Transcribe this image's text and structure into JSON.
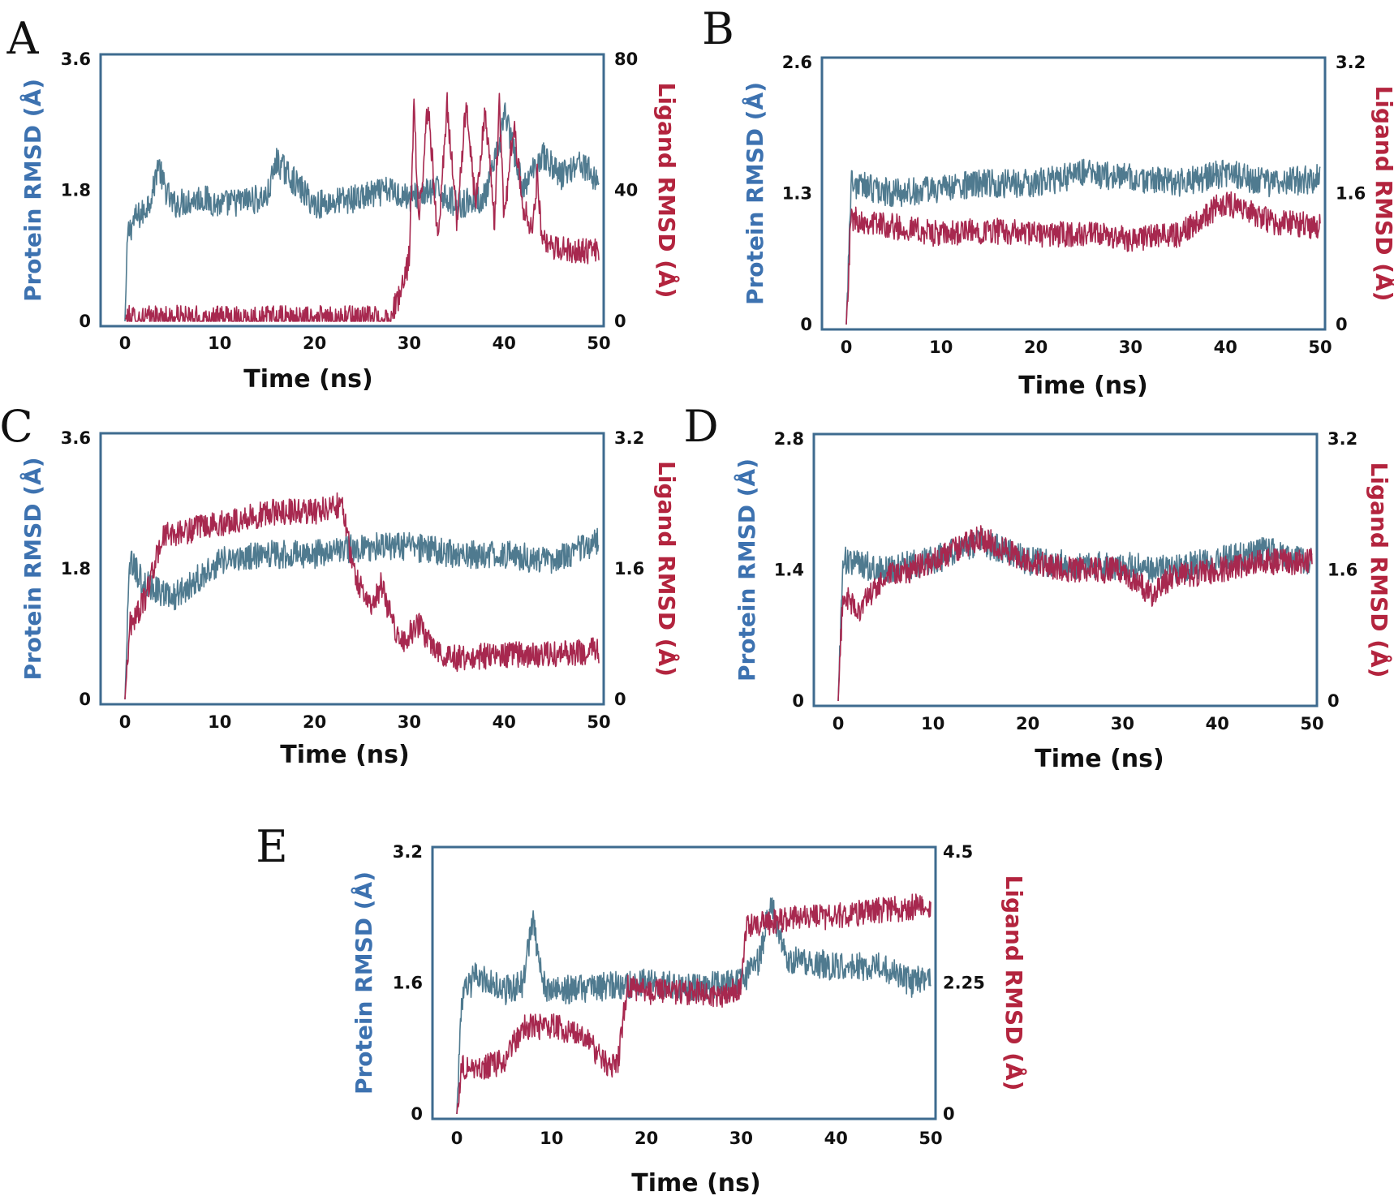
{
  "chart_data": [
    {
      "panel": "A",
      "type": "line",
      "xlabel": "Time (ns)",
      "ylabel": "Protein RMSD (Å)",
      "ylabel_right": "Ligand RMSD (Å)",
      "xlim": [
        0,
        50
      ],
      "x_ticks": [
        "0",
        "10",
        "20",
        "30",
        "40",
        "50"
      ],
      "ylim": [
        0,
        3.6
      ],
      "y_ticks": [
        "0",
        "1.8",
        "3.6"
      ],
      "ylim_right": [
        0,
        80
      ],
      "y_ticks_right": [
        "0",
        "40",
        "80"
      ],
      "grid": false,
      "colors": {
        "protein": "#4f7a8f",
        "ligand": "#a7284f"
      },
      "series": [
        {
          "axis": "left",
          "color": "#4f7a8f",
          "x": [
            0,
            0.3,
            1,
            2,
            3,
            3.5,
            4,
            5,
            8,
            10,
            15,
            16,
            20,
            25,
            28,
            30,
            33,
            35,
            38,
            39.5,
            40,
            42,
            44,
            46,
            48,
            50
          ],
          "y": [
            0,
            1.2,
            1.4,
            1.5,
            1.8,
            2.2,
            1.9,
            1.6,
            1.7,
            1.6,
            1.7,
            2.2,
            1.6,
            1.7,
            1.8,
            1.7,
            1.8,
            1.6,
            1.7,
            2.4,
            2.9,
            1.8,
            2.3,
            2.0,
            2.2,
            1.9
          ]
        },
        {
          "axis": "right",
          "color": "#a7284f",
          "x": [
            0,
            5,
            10,
            20,
            28,
            29.5,
            30,
            30.5,
            31,
            32,
            33,
            34,
            35,
            36,
            37,
            38,
            39,
            39.5,
            40,
            41,
            42,
            43,
            43.5,
            44,
            45,
            47,
            50
          ],
          "y": [
            0.8,
            0.9,
            0.8,
            0.8,
            1,
            12,
            20,
            66,
            30,
            67,
            25,
            66,
            30,
            67,
            35,
            64,
            30,
            67,
            30,
            60,
            35,
            28,
            45,
            25,
            22,
            22,
            21
          ]
        }
      ]
    },
    {
      "panel": "B",
      "type": "line",
      "xlabel": "Time (ns)",
      "ylabel": "Protein RMSD (Å)",
      "ylabel_right": "Ligand RMSD (Å)",
      "xlim": [
        0,
        50
      ],
      "x_ticks": [
        "0",
        "10",
        "20",
        "30",
        "40",
        "50"
      ],
      "ylim": [
        0,
        2.6
      ],
      "y_ticks": [
        "0",
        "1.3",
        "2.6"
      ],
      "ylim_right": [
        0,
        3.2
      ],
      "y_ticks_right": [
        "0",
        "1.6",
        "3.2"
      ],
      "grid": false,
      "colors": {
        "protein": "#4f7a8f",
        "ligand": "#a7284f"
      },
      "series": [
        {
          "axis": "left",
          "color": "#4f7a8f",
          "x": [
            0,
            0.5,
            5,
            10,
            15,
            20,
            25,
            30,
            35,
            40,
            45,
            50
          ],
          "y": [
            0,
            1.4,
            1.3,
            1.35,
            1.4,
            1.4,
            1.5,
            1.45,
            1.4,
            1.5,
            1.4,
            1.45
          ]
        },
        {
          "axis": "right",
          "color": "#a7284f",
          "x": [
            0,
            0.5,
            5,
            10,
            15,
            20,
            25,
            30,
            35,
            40,
            45,
            50
          ],
          "y": [
            0,
            1.3,
            1.2,
            1.1,
            1.15,
            1.1,
            1.1,
            1.05,
            1.1,
            1.5,
            1.25,
            1.2
          ]
        }
      ]
    },
    {
      "panel": "C",
      "type": "line",
      "xlabel": "Time (ns)",
      "ylabel": "Protein RMSD (Å)",
      "ylabel_right": "Ligand RMSD (Å)",
      "xlim": [
        0,
        50
      ],
      "x_ticks": [
        "0",
        "10",
        "20",
        "30",
        "40",
        "50"
      ],
      "ylim": [
        0,
        3.6
      ],
      "y_ticks": [
        "0",
        "1.8",
        "3.6"
      ],
      "ylim_right": [
        0,
        3.2
      ],
      "y_ticks_right": [
        "0",
        "1.6",
        "3.2"
      ],
      "grid": false,
      "colors": {
        "protein": "#4f7a8f",
        "ligand": "#a7284f"
      },
      "series": [
        {
          "axis": "left",
          "color": "#4f7a8f",
          "x": [
            0,
            0.5,
            2,
            5,
            10,
            15,
            20,
            25,
            30,
            35,
            40,
            45,
            50
          ],
          "y": [
            0,
            1.9,
            1.6,
            1.4,
            1.9,
            2.0,
            2.0,
            2.1,
            2.1,
            2.0,
            2.0,
            1.9,
            2.2
          ]
        },
        {
          "axis": "right",
          "color": "#a7284f",
          "x": [
            0,
            0.5,
            2,
            4,
            8,
            12,
            16,
            20,
            23,
            24,
            26,
            27,
            29,
            31,
            33,
            35,
            40,
            45,
            50
          ],
          "y": [
            0,
            0.9,
            1.2,
            2.0,
            2.1,
            2.2,
            2.3,
            2.3,
            2.4,
            1.6,
            1.1,
            1.4,
            0.7,
            0.9,
            0.6,
            0.5,
            0.55,
            0.55,
            0.6
          ]
        }
      ]
    },
    {
      "panel": "D",
      "type": "line",
      "xlabel": "Time (ns)",
      "ylabel": "Protein RMSD (Å)",
      "ylabel_right": "Ligand RMSD (Å)",
      "xlim": [
        0,
        50
      ],
      "x_ticks": [
        "0",
        "10",
        "20",
        "30",
        "40",
        "50"
      ],
      "ylim": [
        0,
        2.8
      ],
      "y_ticks": [
        "0",
        "1.4",
        "2.8"
      ],
      "ylim_right": [
        0,
        3.2
      ],
      "y_ticks_right": [
        "0",
        "1.6",
        "3.2"
      ],
      "grid": false,
      "colors": {
        "protein": "#4f7a8f",
        "ligand": "#a7284f"
      },
      "series": [
        {
          "axis": "left",
          "color": "#4f7a8f",
          "x": [
            0,
            0.5,
            5,
            10,
            15,
            20,
            25,
            30,
            35,
            40,
            45,
            50
          ],
          "y": [
            0,
            1.5,
            1.4,
            1.5,
            1.7,
            1.5,
            1.45,
            1.45,
            1.4,
            1.5,
            1.6,
            1.5
          ]
        },
        {
          "axis": "right",
          "color": "#a7284f",
          "x": [
            0,
            0.5,
            2,
            5,
            10,
            15,
            20,
            25,
            30,
            33,
            35,
            40,
            45,
            50
          ],
          "y": [
            0,
            1.3,
            1.1,
            1.5,
            1.7,
            2.0,
            1.7,
            1.6,
            1.6,
            1.3,
            1.5,
            1.6,
            1.7,
            1.7
          ]
        }
      ]
    },
    {
      "panel": "E",
      "type": "line",
      "xlabel": "Time (ns)",
      "ylabel": "Protein RMSD (Å)",
      "ylabel_right": "Ligand RMSD (Å)",
      "xlim": [
        0,
        50
      ],
      "x_ticks": [
        "0",
        "10",
        "20",
        "30",
        "40",
        "50"
      ],
      "ylim": [
        0,
        3.2
      ],
      "y_ticks": [
        "0",
        "1.6",
        "3.2"
      ],
      "ylim_right": [
        0,
        4.5
      ],
      "y_ticks_right": [
        "0",
        "2.25",
        "4.5"
      ],
      "grid": false,
      "colors": {
        "protein": "#4f7a8f",
        "ligand": "#a7284f"
      },
      "series": [
        {
          "axis": "left",
          "color": "#4f7a8f",
          "x": [
            0,
            0.5,
            2,
            5,
            7,
            8,
            9,
            10,
            15,
            20,
            25,
            30,
            32,
            33,
            35,
            40,
            45,
            48,
            50
          ],
          "y": [
            0,
            1.4,
            1.7,
            1.5,
            1.6,
            2.4,
            1.6,
            1.5,
            1.55,
            1.6,
            1.55,
            1.6,
            1.9,
            2.6,
            1.9,
            1.8,
            1.8,
            1.6,
            1.7
          ]
        },
        {
          "axis": "right",
          "color": "#a7284f",
          "x": [
            0,
            0.5,
            3,
            5,
            7,
            10,
            13,
            15,
            16,
            17,
            18,
            20,
            25,
            28,
            30,
            30.5,
            33,
            35,
            40,
            45,
            48,
            49.5,
            50
          ],
          "y": [
            0,
            0.8,
            0.8,
            0.9,
            1.5,
            1.5,
            1.4,
            1.0,
            0.8,
            0.9,
            2.2,
            2.1,
            2.1,
            2.05,
            2.2,
            3.2,
            3.3,
            3.35,
            3.4,
            3.5,
            3.55,
            3.6,
            3.5
          ]
        }
      ]
    }
  ]
}
